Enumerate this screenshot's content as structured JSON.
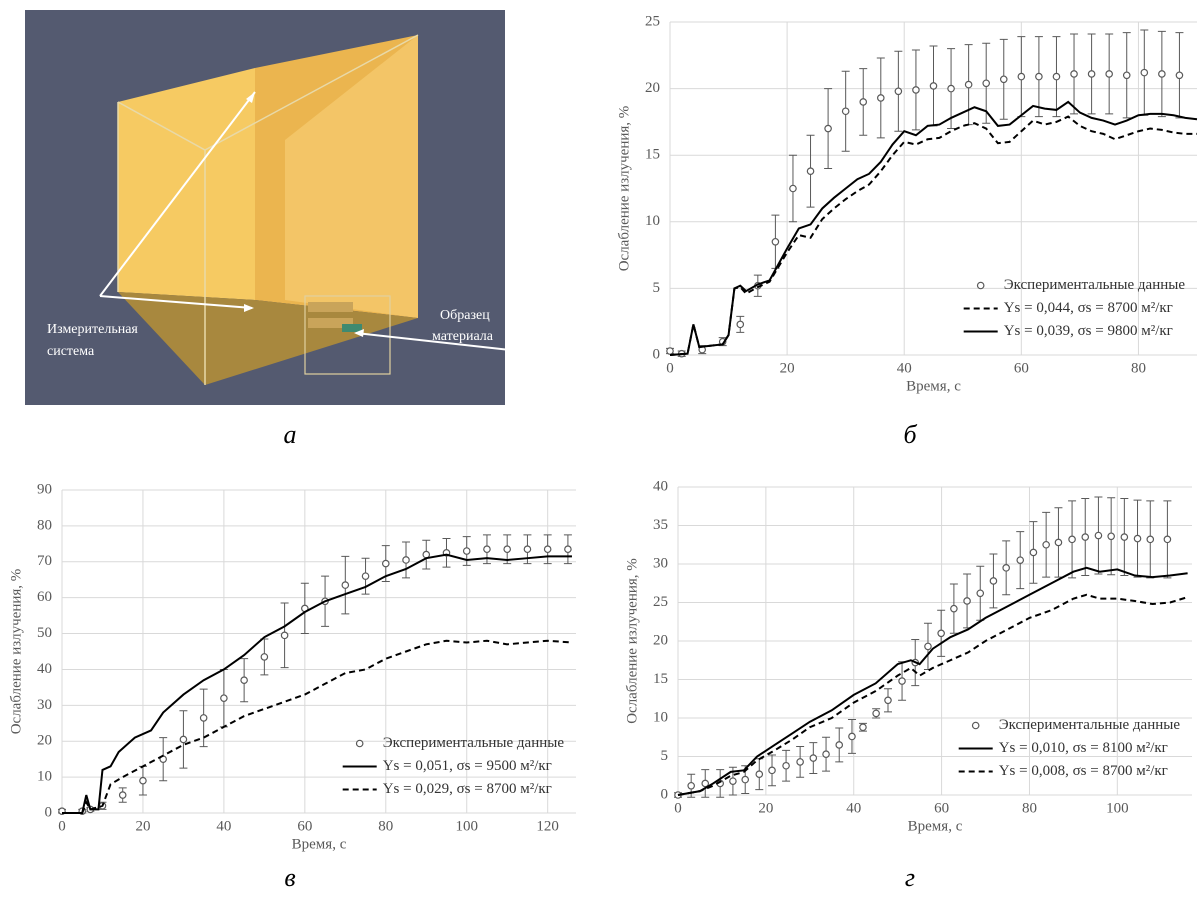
{
  "scene": {
    "labels": [
      [
        "Измерительная",
        "система"
      ],
      [
        "Образец",
        "материала"
      ]
    ],
    "caption": "а"
  },
  "chart_data": [
    {
      "type": "line",
      "caption": "б",
      "x_label": "Время, с",
      "y_label": "Ослабление излучения, %",
      "xlim": [
        0,
        90
      ],
      "xticks": [
        0,
        20,
        40,
        60,
        80
      ],
      "ylim": [
        0,
        25
      ],
      "yticks": [
        0,
        5,
        10,
        15,
        20,
        25
      ],
      "grid": true,
      "legend": "lower right",
      "series": [
        {
          "name": "Экспериментальные данные",
          "color": "#595959",
          "marker": "circle",
          "x": [
            0,
            2,
            5.5,
            9,
            12,
            15,
            18,
            21,
            24,
            27,
            30,
            33,
            36,
            39,
            42,
            45,
            48,
            51,
            54,
            57,
            60,
            63,
            66,
            69,
            72,
            75,
            78,
            81,
            84,
            87
          ],
          "values": [
            0.3,
            0.1,
            0.4,
            1,
            2.3,
            5.2,
            8.5,
            12.5,
            13.8,
            17,
            18.3,
            19,
            19.3,
            19.8,
            19.9,
            20.2,
            20,
            20.3,
            20.4,
            20.7,
            20.9,
            20.9,
            20.9,
            21.1,
            21.1,
            21.1,
            21,
            21.2,
            21.1,
            21
          ],
          "errors": [
            0.2,
            0.2,
            0.3,
            0.3,
            0.6,
            0.8,
            2,
            2.5,
            2.7,
            3,
            3,
            2.5,
            3,
            3,
            3,
            3,
            3,
            3,
            3,
            3,
            3,
            3,
            3,
            3,
            3,
            3,
            3.2,
            3.2,
            3.2,
            3.2
          ]
        },
        {
          "name": "Ys = 0,044, σs = 8700 м²/кг",
          "color": "#000000",
          "dash": true,
          "x": [
            0,
            3,
            4,
            5,
            9,
            10,
            11,
            12,
            13,
            15,
            17,
            20,
            22,
            24,
            26,
            28,
            30,
            32,
            34,
            36,
            38,
            40,
            42,
            44,
            46,
            48,
            50,
            52,
            54,
            56,
            58,
            60,
            62,
            64,
            66,
            68,
            70,
            72,
            74,
            76,
            78,
            80,
            82,
            84,
            86,
            88,
            90
          ],
          "values": [
            0,
            0.1,
            2.3,
            0.6,
            0.8,
            1.5,
            5,
            5.1,
            4.6,
            5.1,
            5.5,
            7.7,
            9,
            8.8,
            10.2,
            11,
            11.7,
            12.3,
            12.8,
            13.8,
            15,
            16,
            15.8,
            16.2,
            16.3,
            16.8,
            17.2,
            17.4,
            17,
            15.9,
            16,
            16.8,
            17.6,
            17.3,
            17.5,
            17.9,
            17.2,
            16.8,
            16.6,
            16.2,
            16.5,
            16.8,
            17,
            16.9,
            16.7,
            16.6,
            16.6
          ]
        },
        {
          "name": "Ys = 0,039, σs = 9800 м²/кг",
          "color": "#000000",
          "dash": false,
          "x": [
            0,
            3,
            4,
            5,
            9,
            10,
            11,
            12,
            13,
            15,
            17,
            20,
            22,
            24,
            26,
            28,
            30,
            32,
            34,
            36,
            38,
            40,
            42,
            44,
            46,
            48,
            50,
            52,
            54,
            56,
            58,
            60,
            62,
            64,
            66,
            68,
            70,
            72,
            74,
            76,
            78,
            80,
            82,
            84,
            86,
            88,
            90
          ],
          "values": [
            0,
            0.1,
            2.3,
            0.6,
            0.8,
            1.5,
            5,
            5.2,
            4.8,
            5.3,
            5.6,
            8,
            9.5,
            9.8,
            11,
            11.8,
            12.5,
            13.2,
            13.6,
            14.5,
            15.8,
            16.8,
            16.5,
            17.2,
            17.3,
            17.8,
            18.2,
            18.6,
            18.3,
            17.2,
            17.3,
            18,
            18.7,
            18.5,
            18.4,
            19,
            18.2,
            17.8,
            17.6,
            17.3,
            17.6,
            18,
            18.1,
            18.1,
            18,
            17.8,
            17.7
          ]
        }
      ]
    },
    {
      "type": "line",
      "caption": "в",
      "x_label": "Время, с",
      "y_label": "Ослабление излучения, %",
      "xlim": [
        0,
        127
      ],
      "xticks": [
        0,
        20,
        40,
        60,
        80,
        100,
        120
      ],
      "ylim": [
        0,
        90
      ],
      "yticks": [
        0,
        10,
        20,
        30,
        40,
        50,
        60,
        70,
        80,
        90
      ],
      "grid": true,
      "legend": "lower right",
      "series": [
        {
          "name": "Экспериментальные данные",
          "color": "#595959",
          "marker": "circle",
          "x": [
            0,
            5,
            7,
            10,
            15,
            20,
            25,
            30,
            35,
            40,
            45,
            50,
            55,
            60,
            65,
            70,
            75,
            80,
            85,
            90,
            95,
            100,
            105,
            110,
            115,
            120,
            125
          ],
          "values": [
            0.5,
            0.5,
            1,
            2,
            5,
            9,
            15,
            20.5,
            26.5,
            32,
            37,
            43.5,
            49.5,
            57,
            59,
            63.5,
            66,
            69.5,
            70.5,
            72,
            72.5,
            73,
            73.5,
            73.5,
            73.5,
            73.5,
            73.5
          ],
          "errors": [
            0.5,
            0.5,
            0.5,
            1,
            2,
            4,
            6,
            8,
            8,
            8,
            6,
            5,
            9,
            7,
            7,
            8,
            5,
            5,
            5,
            4,
            4,
            4,
            4,
            4,
            4,
            4,
            4
          ]
        },
        {
          "name": "Ys = 0,051, σs = 9500 м²/кг",
          "color": "#000000",
          "dash": false,
          "x": [
            0,
            5,
            6,
            7,
            9,
            10,
            12,
            14,
            18,
            22,
            25,
            30,
            35,
            40,
            45,
            50,
            55,
            60,
            65,
            70,
            75,
            80,
            85,
            90,
            95,
            100,
            105,
            110,
            115,
            120,
            126
          ],
          "values": [
            0,
            0,
            5,
            1,
            1,
            12,
            13,
            17,
            21,
            23,
            28,
            33,
            37,
            40,
            44,
            49,
            52,
            56,
            59,
            61,
            63,
            66,
            68,
            71,
            72,
            70.5,
            71,
            70.5,
            71,
            71.5,
            71.5
          ]
        },
        {
          "name": "Ys = 0,029, σs = 8700 м²/кг",
          "color": "#000000",
          "dash": true,
          "x": [
            0,
            5,
            6,
            7,
            10,
            12,
            15,
            20,
            25,
            30,
            35,
            40,
            45,
            50,
            55,
            60,
            65,
            70,
            75,
            80,
            85,
            90,
            95,
            100,
            105,
            110,
            115,
            120,
            126
          ],
          "values": [
            0,
            0,
            3,
            1,
            2,
            8,
            10,
            13,
            16,
            19,
            21,
            24,
            27,
            29,
            31,
            33,
            36,
            39,
            40,
            43,
            45,
            47,
            48,
            47.5,
            48,
            47,
            47.5,
            48,
            47.5
          ]
        }
      ]
    },
    {
      "type": "line",
      "caption": "г",
      "x_label": "Время, с",
      "y_label": "Ослабление излучения, %",
      "xlim": [
        0,
        117
      ],
      "xticks": [
        0,
        20,
        40,
        60,
        80,
        100
      ],
      "ylim": [
        0,
        40
      ],
      "yticks": [
        0,
        5,
        10,
        15,
        20,
        25,
        30,
        35,
        40
      ],
      "grid": true,
      "legend": "lower right",
      "series": [
        {
          "name": "Экспериментальные данные",
          "color": "#595959",
          "marker": "circle",
          "x": [
            0,
            3,
            6.2,
            9.6,
            12.5,
            15.3,
            18.5,
            21.4,
            24.6,
            27.8,
            30.8,
            33.7,
            36.7,
            39.6,
            42.1,
            45.1,
            47.8,
            51,
            54,
            56.9,
            59.9,
            62.8,
            65.8,
            68.8,
            71.8,
            74.7,
            77.9,
            80.9,
            83.8,
            86.6,
            89.7,
            92.7,
            95.7,
            98.6,
            101.6,
            104.6,
            107.5,
            111.4
          ],
          "values": [
            0,
            1.2,
            1.5,
            1.5,
            1.8,
            2,
            2.7,
            3.2,
            3.8,
            4.3,
            4.8,
            5.3,
            6.5,
            7.6,
            8.8,
            10.6,
            12.3,
            14.8,
            17.2,
            19.3,
            21,
            24.2,
            25.2,
            26.2,
            27.8,
            29.5,
            30.5,
            31.5,
            32.5,
            32.8,
            33.2,
            33.5,
            33.7,
            33.6,
            33.5,
            33.3,
            33.2,
            33.2
          ],
          "errors": [
            0.3,
            1.5,
            1.8,
            1.8,
            1.8,
            1.8,
            2,
            2,
            2,
            2,
            2,
            2.2,
            2.2,
            2.2,
            0.5,
            0.6,
            1.5,
            2.5,
            3,
            3,
            3,
            3.2,
            3.5,
            3.5,
            3.5,
            3.5,
            3.7,
            4,
            4.2,
            4.5,
            5,
            5,
            5,
            5,
            5,
            5,
            5,
            5
          ]
        },
        {
          "name": "Ys = 0,010, σs = 8100 м²/кг",
          "color": "#000000",
          "dash": false,
          "x": [
            0,
            5,
            8,
            12,
            15,
            18,
            22,
            26,
            30,
            35,
            40,
            45,
            50,
            53,
            55,
            58,
            62,
            66,
            70,
            75,
            80,
            85,
            90,
            93,
            96,
            100,
            104,
            108,
            112,
            116
          ],
          "values": [
            0,
            0.5,
            1.5,
            3,
            3.2,
            5,
            6.5,
            8,
            9.5,
            11,
            13,
            14.5,
            17,
            17.5,
            17,
            19,
            20.5,
            21.5,
            23,
            24.5,
            26,
            27.5,
            29,
            29.5,
            29,
            29.3,
            28.5,
            28.3,
            28.5,
            28.8
          ]
        },
        {
          "name": "Ys = 0,008, σs = 8700 м²/кг",
          "color": "#000000",
          "dash": true,
          "x": [
            0,
            5,
            8,
            12,
            15,
            18,
            22,
            26,
            30,
            35,
            40,
            45,
            50,
            53,
            55,
            58,
            62,
            66,
            70,
            75,
            80,
            85,
            90,
            93,
            96,
            100,
            104,
            108,
            112,
            116
          ],
          "values": [
            0,
            0.5,
            1.2,
            2.5,
            3,
            4.5,
            5.8,
            7.2,
            8.8,
            10,
            12,
            13.5,
            15.5,
            16.5,
            15.5,
            16.5,
            17.5,
            18.5,
            20,
            21.5,
            23,
            24,
            25.5,
            26,
            25.5,
            25.5,
            25.2,
            24.8,
            25,
            25.7
          ]
        }
      ]
    }
  ]
}
